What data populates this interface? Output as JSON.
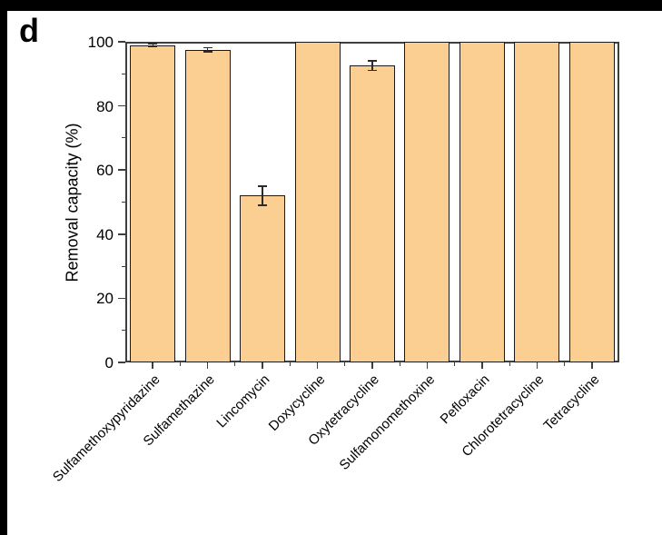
{
  "figure": {
    "panel_label": "d"
  },
  "chart_data": {
    "type": "bar",
    "title": "",
    "xlabel": "",
    "ylabel": "Removal capacity (%)",
    "ylim": [
      0,
      100
    ],
    "yticks": [
      0,
      20,
      40,
      60,
      80,
      100
    ],
    "yticks_minor": [
      10,
      30,
      50,
      70,
      90
    ],
    "grid": false,
    "legend": false,
    "categories": [
      "Sulfamethoxypyridazine",
      "Sulfamethazine",
      "Lincomycin",
      "Doxycycline",
      "Oxytetracycline",
      "Sulfamonomethoxine",
      "Pefloxacin",
      "Chlorotetracycline",
      "Tetracycline"
    ],
    "values": [
      99,
      97.5,
      52,
      100,
      92.5,
      100,
      100,
      100,
      100
    ],
    "errors": [
      0.4,
      0.6,
      3,
      0,
      1.5,
      0,
      0,
      0,
      0
    ],
    "bar_color": "#FBCE92",
    "bar_border_color": "#1A1A1A",
    "axis_color": "#3F3F3F",
    "error_bar_color": "#2B2B2B",
    "x_tick_label_rotation": -45
  }
}
